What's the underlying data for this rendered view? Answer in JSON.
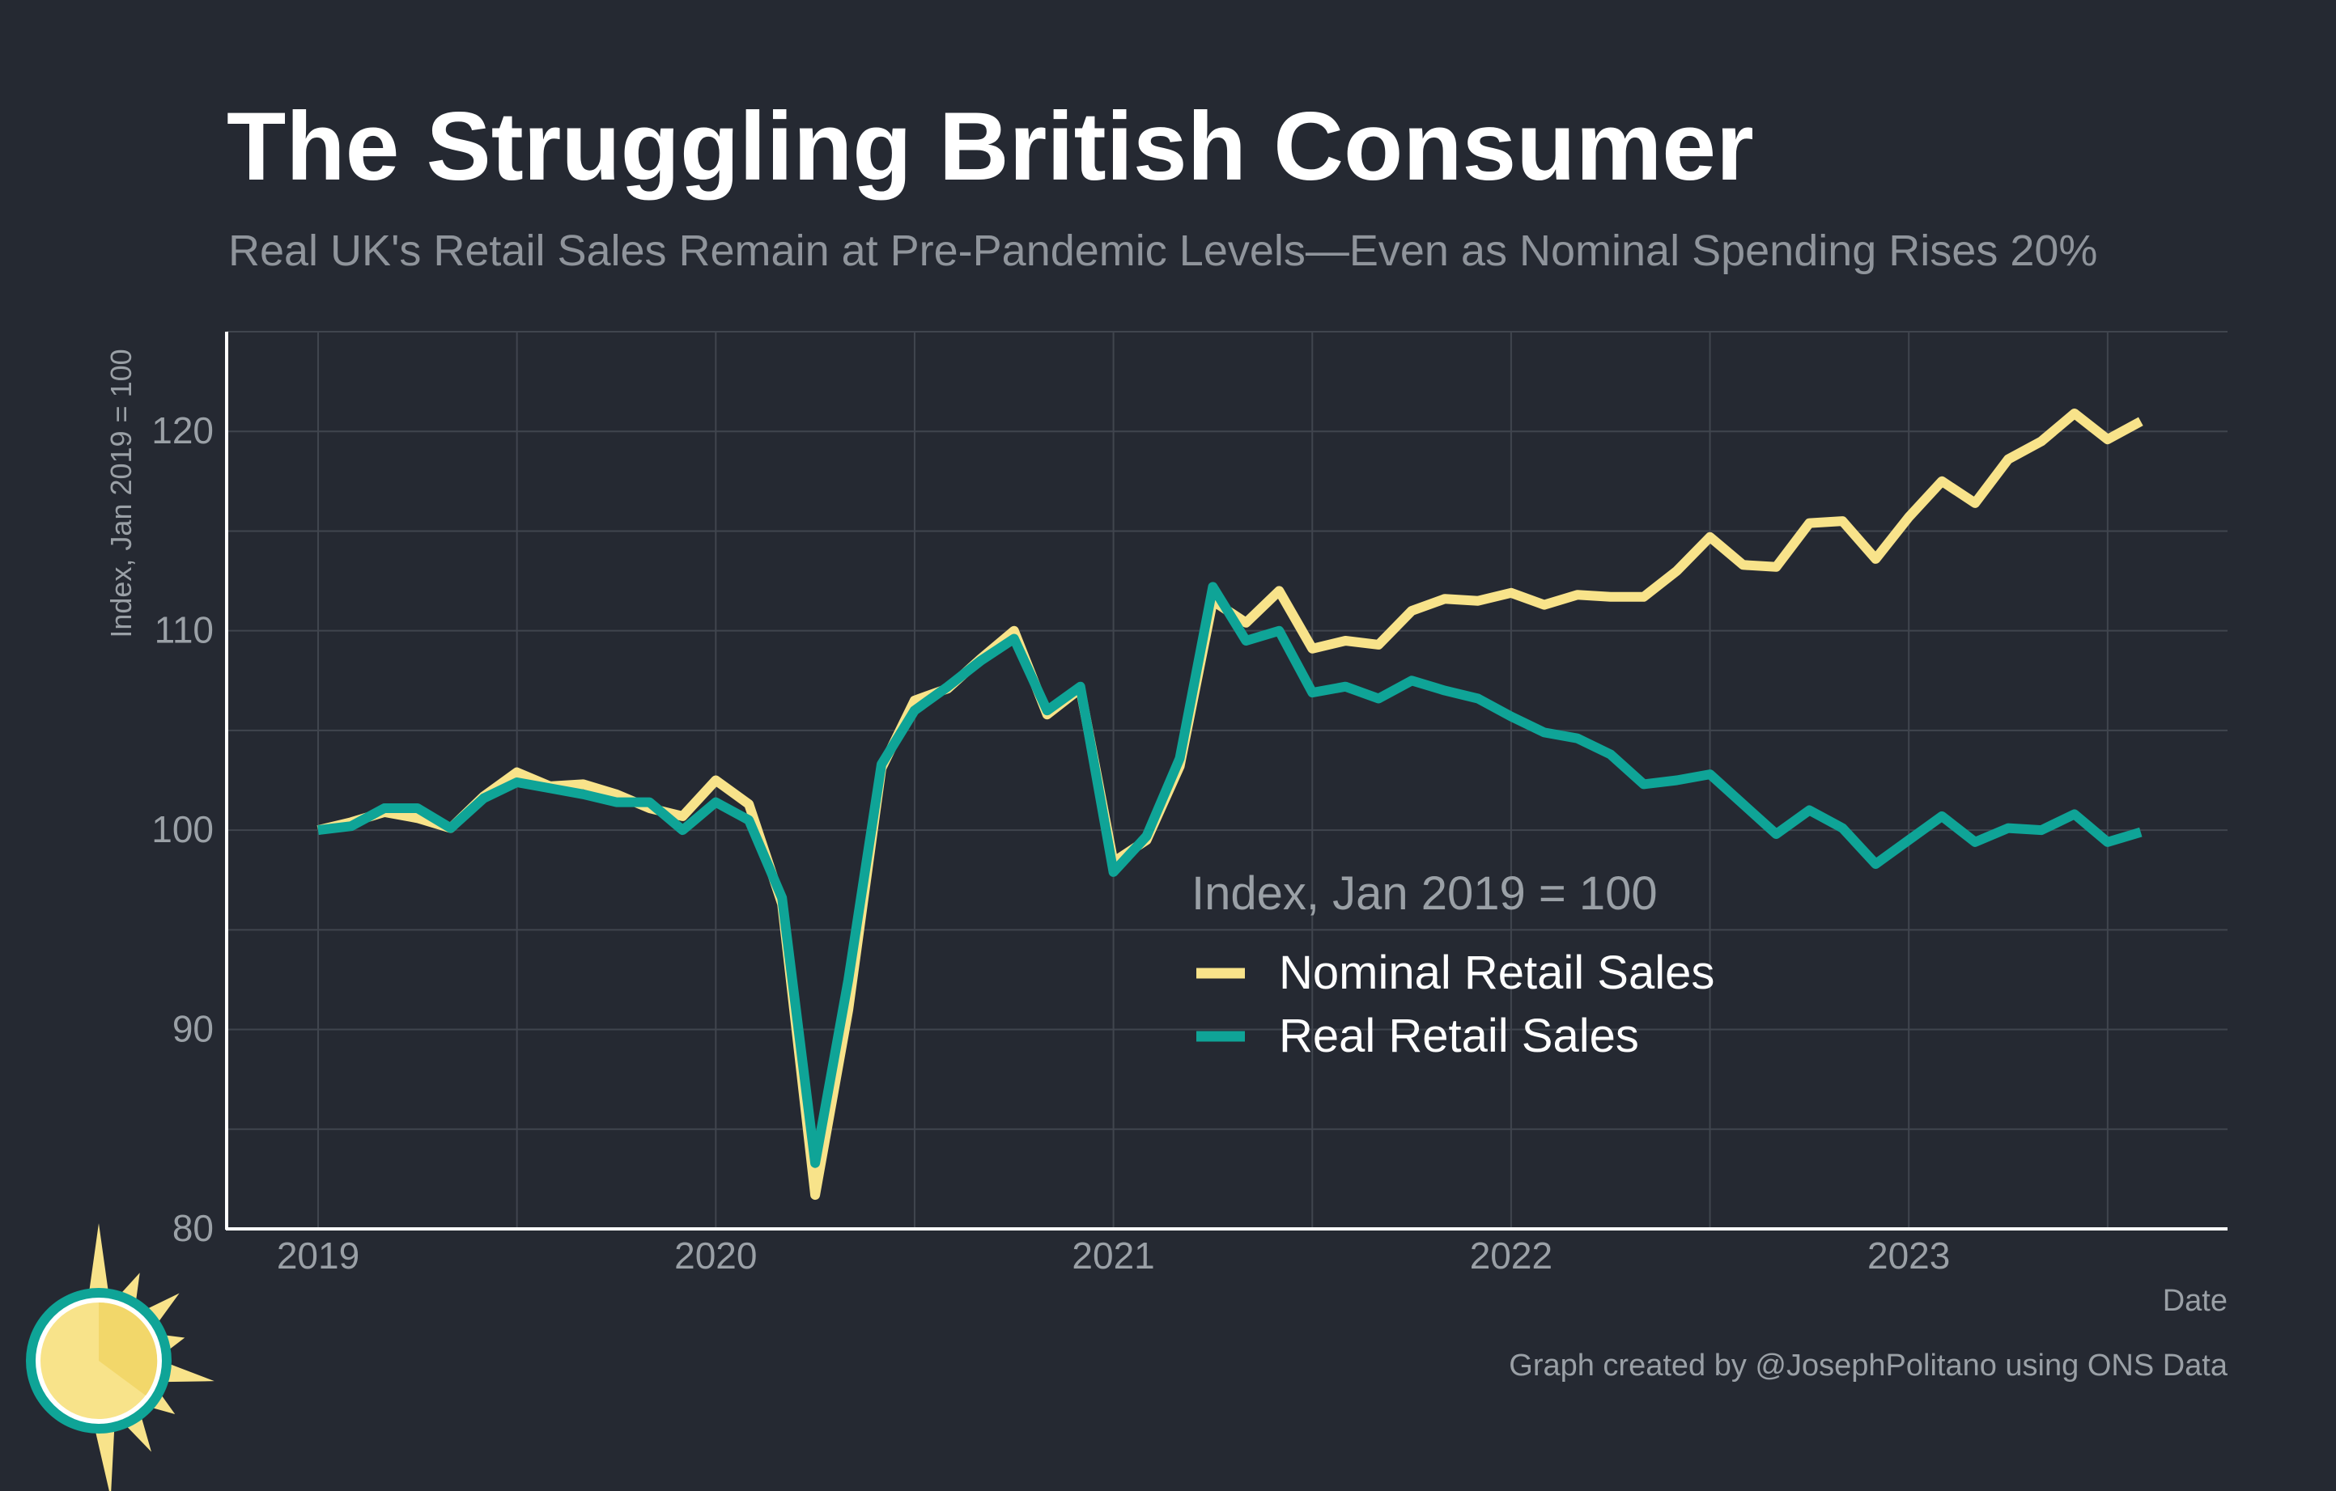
{
  "chart_data": {
    "type": "line",
    "title": "The Struggling British Consumer",
    "subtitle": "Real UK's Retail Sales Remain at Pre-Pandemic Levels—Even as Nominal Spending Rises 20%",
    "xlabel": "Date",
    "ylabel": "Index, Jan 2019 = 100",
    "ylim": [
      80,
      125
    ],
    "yticks": [
      80,
      90,
      100,
      110,
      120
    ],
    "xticks": [
      "2019",
      "2020",
      "2021",
      "2022",
      "2023"
    ],
    "grid": true,
    "legend": {
      "title": "Index, Jan 2019 = 100",
      "placement": "center-right inside plot"
    },
    "x": [
      "2019-01",
      "2019-02",
      "2019-03",
      "2019-04",
      "2019-05",
      "2019-06",
      "2019-07",
      "2019-08",
      "2019-09",
      "2019-10",
      "2019-11",
      "2019-12",
      "2020-01",
      "2020-02",
      "2020-03",
      "2020-04",
      "2020-05",
      "2020-06",
      "2020-07",
      "2020-08",
      "2020-09",
      "2020-10",
      "2020-11",
      "2020-12",
      "2021-01",
      "2021-02",
      "2021-03",
      "2021-04",
      "2021-05",
      "2021-06",
      "2021-07",
      "2021-08",
      "2021-09",
      "2021-10",
      "2021-11",
      "2021-12",
      "2022-01",
      "2022-02",
      "2022-03",
      "2022-04",
      "2022-05",
      "2022-06",
      "2022-07",
      "2022-08",
      "2022-09",
      "2022-10",
      "2022-11",
      "2022-12",
      "2023-01",
      "2023-02",
      "2023-03",
      "2023-04",
      "2023-05",
      "2023-06",
      "2023-07",
      "2023-08"
    ],
    "series": [
      {
        "name": "Nominal Retail Sales",
        "color": "#f8e38a",
        "values": [
          100.0,
          100.4,
          100.9,
          100.6,
          100.1,
          101.7,
          102.9,
          102.2,
          102.3,
          101.8,
          101.1,
          100.7,
          102.5,
          101.3,
          96.3,
          81.7,
          91.0,
          103.1,
          106.5,
          107.1,
          108.6,
          110.0,
          105.8,
          107.1,
          98.4,
          99.5,
          103.2,
          111.5,
          110.4,
          112.0,
          109.1,
          109.5,
          109.3,
          111.0,
          111.6,
          111.5,
          111.9,
          111.3,
          111.8,
          111.7,
          111.7,
          113.0,
          114.7,
          113.3,
          113.2,
          115.4,
          115.5,
          113.6,
          115.7,
          117.5,
          116.4,
          118.6,
          119.5,
          120.9,
          119.6,
          120.5
        ]
      },
      {
        "name": "Real Retail Sales",
        "color": "#0fa497",
        "values": [
          100.0,
          100.2,
          101.1,
          101.1,
          100.1,
          101.6,
          102.4,
          102.1,
          101.8,
          101.4,
          101.4,
          100.0,
          101.4,
          100.5,
          96.6,
          83.3,
          92.5,
          103.3,
          106.0,
          107.2,
          108.5,
          109.6,
          106.0,
          107.2,
          97.9,
          99.7,
          103.6,
          112.2,
          109.5,
          110.0,
          106.9,
          107.2,
          106.6,
          107.5,
          107.0,
          106.6,
          105.7,
          104.9,
          104.6,
          103.8,
          102.3,
          102.5,
          102.8,
          101.3,
          99.8,
          101.0,
          100.1,
          98.3,
          99.5,
          100.7,
          99.4,
          100.1,
          100.0,
          100.8,
          99.4,
          99.9
        ]
      }
    ],
    "caption": "Graph created by @JosephPolitano using ONS Data"
  },
  "colors": {
    "background": "#252932",
    "grid": "#40454e",
    "axis": "#ffffff",
    "logo_sun": "#f8e38a",
    "logo_ring": "#0fa497"
  },
  "logo": {
    "icon": "sun-logo-icon"
  }
}
